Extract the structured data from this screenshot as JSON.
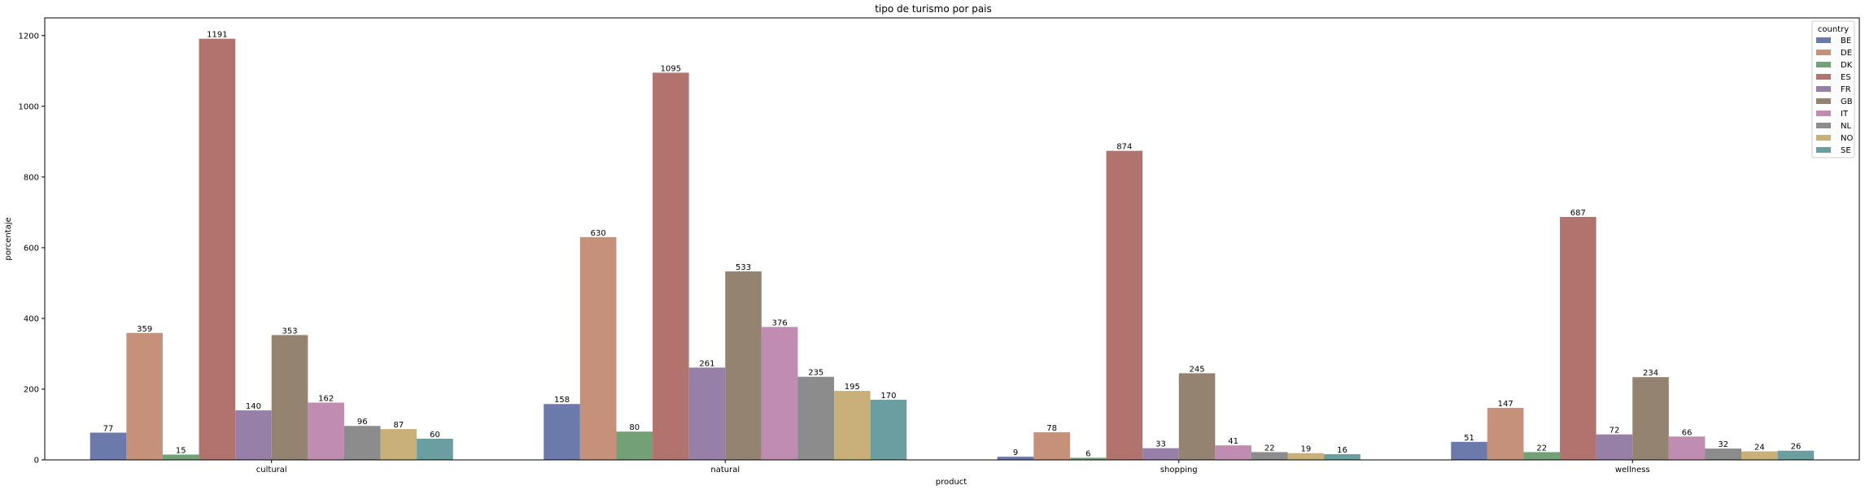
{
  "chart_data": {
    "type": "bar",
    "title": "tipo de turismo por pais",
    "xlabel": "product",
    "ylabel": "porcentaje",
    "categories": [
      "cultural",
      "natural",
      "shopping",
      "wellness"
    ],
    "ylim": [
      0,
      1250
    ],
    "yticks": [
      0,
      200,
      400,
      600,
      800,
      1000,
      1200
    ],
    "grid": false,
    "legend": {
      "title": "country",
      "placement": "top-right"
    },
    "series": [
      {
        "name": "BE",
        "color": "#6c7aab",
        "values": [
          77,
          158,
          9,
          51
        ]
      },
      {
        "name": "DE",
        "color": "#c6917a",
        "values": [
          359,
          630,
          78,
          147
        ]
      },
      {
        "name": "DK",
        "color": "#73a077",
        "values": [
          15,
          80,
          6,
          22
        ]
      },
      {
        "name": "ES",
        "color": "#b0736e",
        "values": [
          1191,
          1095,
          874,
          687
        ]
      },
      {
        "name": "FR",
        "color": "#9680a8",
        "values": [
          140,
          261,
          33,
          72
        ]
      },
      {
        "name": "GB",
        "color": "#958372",
        "values": [
          353,
          533,
          245,
          234
        ]
      },
      {
        "name": "IT",
        "color": "#be8db1",
        "values": [
          162,
          376,
          41,
          66
        ]
      },
      {
        "name": "NL",
        "color": "#8c8c8c",
        "values": [
          96,
          235,
          22,
          32
        ]
      },
      {
        "name": "NO",
        "color": "#c9b07a",
        "values": [
          87,
          195,
          19,
          24
        ]
      },
      {
        "name": "SE",
        "color": "#6a9ea1",
        "values": [
          60,
          170,
          16,
          26
        ]
      }
    ]
  }
}
